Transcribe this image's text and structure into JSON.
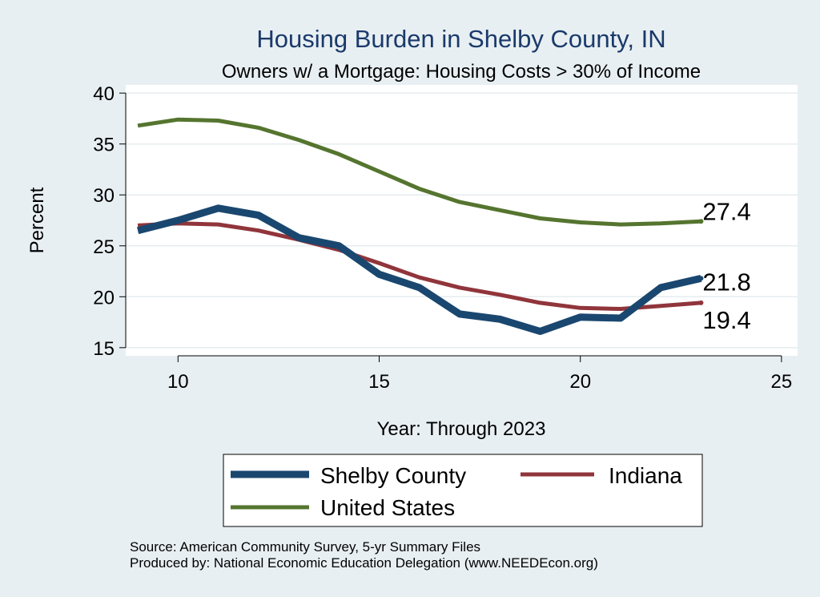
{
  "chart_data": {
    "type": "line",
    "title": "Housing Burden in Shelby County, IN",
    "subtitle": "Owners w/ a Mortgage: Housing Costs > 30% of Income",
    "xlabel": "Year: Through 2023",
    "ylabel": "Percent",
    "xlim": [
      8.7,
      25.4
    ],
    "ylim": [
      14.2,
      40.8
    ],
    "xticks": [
      10,
      15,
      20,
      25
    ],
    "yticks": [
      15,
      20,
      25,
      30,
      35,
      40
    ],
    "grid": true,
    "legend_position": "bottom",
    "x": [
      9,
      10,
      11,
      12,
      13,
      14,
      15,
      16,
      17,
      18,
      19,
      20,
      21,
      22,
      23
    ],
    "series": [
      {
        "name": "Shelby County",
        "color": "#1a476f",
        "values": [
          26.5,
          27.5,
          28.7,
          28.0,
          25.8,
          25.0,
          22.2,
          20.9,
          18.3,
          17.8,
          16.6,
          18.0,
          17.9,
          20.9,
          21.8
        ],
        "end_label": "21.8"
      },
      {
        "name": "Indiana",
        "color": "#90353b",
        "values": [
          27.0,
          27.2,
          27.1,
          26.5,
          25.6,
          24.6,
          23.3,
          21.9,
          20.9,
          20.2,
          19.4,
          18.9,
          18.8,
          19.1,
          19.4
        ],
        "end_label": "19.4"
      },
      {
        "name": "United States",
        "color": "#55752f",
        "values": [
          36.8,
          37.4,
          37.3,
          36.6,
          35.4,
          34.0,
          32.3,
          30.6,
          29.3,
          28.5,
          27.7,
          27.3,
          27.1,
          27.2,
          27.4
        ],
        "end_label": "27.4"
      }
    ],
    "notes": [
      "Source: American Community Survey, 5-yr Summary Files",
      "Produced by: National Economic Education Delegation (www.NEEDEcon.org)"
    ]
  }
}
